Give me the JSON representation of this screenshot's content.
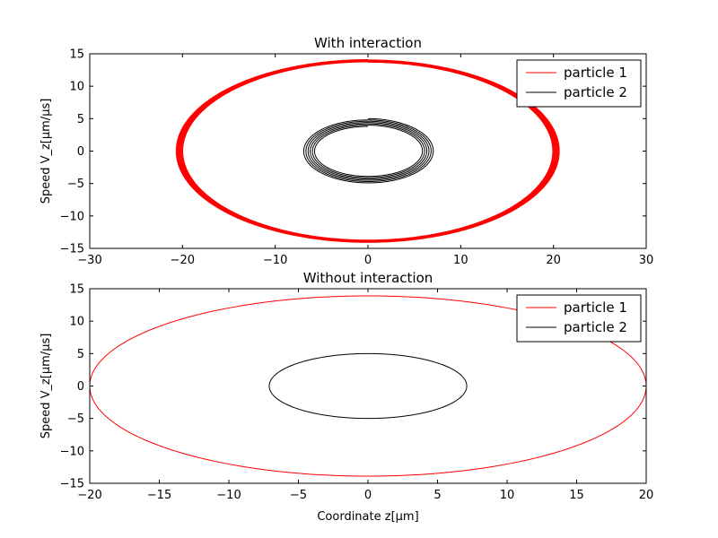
{
  "chart_data": [
    {
      "type": "line",
      "title": "With interaction",
      "xlabel": "",
      "ylabel": "Speed V_z[μm/μs]",
      "xlim": [
        -30,
        30
      ],
      "ylim": [
        -15,
        15
      ],
      "xticks": [
        -30,
        -20,
        -10,
        0,
        10,
        20,
        30
      ],
      "yticks": [
        -15,
        -10,
        -5,
        0,
        5,
        10,
        15
      ],
      "x_tick_labels": [
        "−30",
        "−20",
        "−10",
        "0",
        "10",
        "20",
        "30"
      ],
      "y_tick_labels": [
        "−15",
        "−10",
        "−5",
        "0",
        "5",
        "10",
        "15"
      ],
      "grid": false,
      "legend": "top-right",
      "series": [
        {
          "name": "particle 1",
          "color": "#ff0000",
          "shape": "closed orbit",
          "x_amplitude": 20.3,
          "y_amplitude": 13.9,
          "x_amplitude_spread": 0.4,
          "y_amplitude_spread": 0.2,
          "turns": 8
        },
        {
          "name": "particle 2",
          "color": "#000000",
          "shape": "spiral orbit",
          "x_amplitude_range": [
            5.7,
            7.1
          ],
          "y_amplitude_range": [
            3.8,
            5.0
          ],
          "turns": 6
        }
      ]
    },
    {
      "type": "line",
      "title": "Without interaction",
      "xlabel": "Coordinate z[μm]",
      "ylabel": "Speed V_z[μm/μs]",
      "xlim": [
        -20,
        20
      ],
      "ylim": [
        -15,
        15
      ],
      "xticks": [
        -20,
        -15,
        -10,
        -5,
        0,
        5,
        10,
        15,
        20
      ],
      "yticks": [
        -15,
        -10,
        -5,
        0,
        5,
        10,
        15
      ],
      "x_tick_labels": [
        "−20",
        "−15",
        "−10",
        "−5",
        "0",
        "5",
        "10",
        "15",
        "20"
      ],
      "y_tick_labels": [
        "−15",
        "−10",
        "−5",
        "0",
        "5",
        "10",
        "15"
      ],
      "grid": false,
      "legend": "top-right",
      "series": [
        {
          "name": "particle 1",
          "color": "#ff0000",
          "shape": "closed orbit",
          "x_amplitude": 20,
          "y_amplitude": 13.9,
          "x_amplitude_spread": 0,
          "y_amplitude_spread": 0,
          "turns": 1
        },
        {
          "name": "particle 2",
          "color": "#000000",
          "shape": "closed orbit",
          "x_amplitude": 7.1,
          "y_amplitude": 5.0,
          "x_amplitude_spread": 0,
          "y_amplitude_spread": 0,
          "turns": 1
        }
      ]
    }
  ]
}
